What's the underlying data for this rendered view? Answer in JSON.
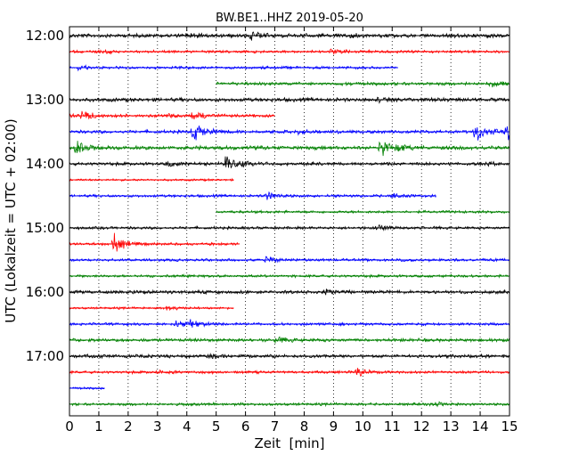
{
  "chart_data": {
    "type": "line",
    "title": "BW.BE1..HHZ 2019-05-20",
    "xlabel": "Zeit  [min]",
    "ylabel": "UTC (Lokalzeit = UTC + 02:00)",
    "xlim": [
      0,
      15
    ],
    "x_ticks": [
      "0",
      "1",
      "2",
      "3",
      "4",
      "5",
      "6",
      "7",
      "8",
      "9",
      "10",
      "11",
      "12",
      "13",
      "14",
      "15"
    ],
    "y_tick_labels": [
      "12:00",
      "13:00",
      "14:00",
      "15:00",
      "16:00",
      "17:00"
    ],
    "grid": "vertical dotted",
    "trace_colors": [
      "#000000",
      "#ff0000",
      "#0000ff",
      "#008000"
    ],
    "traces": [
      {
        "start_utc": "12:00",
        "color": "#000000",
        "active_min": [
          0,
          15
        ],
        "noise": 0.35,
        "events": [
          [
            6.2,
            0.8
          ],
          [
            4.0,
            0.3
          ],
          [
            9.5,
            0.3
          ]
        ]
      },
      {
        "start_utc": "12:15",
        "color": "#ff0000",
        "active_min": [
          0,
          15
        ],
        "noise": 0.25,
        "events": [
          [
            8.9,
            0.5
          ],
          [
            1.2,
            0.2
          ]
        ]
      },
      {
        "start_utc": "12:30",
        "color": "#0000ff",
        "active_min": [
          0,
          11.2
        ],
        "noise": 0.25,
        "events": [
          [
            0.3,
            0.4
          ]
        ]
      },
      {
        "start_utc": "12:45",
        "color": "#008000",
        "active_min": [
          5,
          15
        ],
        "noise": 0.3,
        "events": [
          [
            14.3,
            0.5
          ]
        ]
      },
      {
        "start_utc": "13:00",
        "color": "#000000",
        "active_min": [
          0,
          15
        ],
        "noise": 0.35,
        "events": [
          [
            10.5,
            0.3
          ]
        ]
      },
      {
        "start_utc": "13:15",
        "color": "#ff0000",
        "active_min": [
          0,
          7
        ],
        "noise": 0.3,
        "events": [
          [
            0.4,
            0.9
          ],
          [
            4.2,
            0.8
          ],
          [
            3.4,
            0.4
          ]
        ]
      },
      {
        "start_utc": "13:30",
        "color": "#0000ff",
        "active_min": [
          0,
          15
        ],
        "noise": 0.3,
        "events": [
          [
            4.2,
            1.8
          ],
          [
            13.8,
            1.8
          ],
          [
            14.9,
            1.5
          ],
          [
            7.8,
            0.4
          ]
        ]
      },
      {
        "start_utc": "13:45",
        "color": "#008000",
        "active_min": [
          0,
          15
        ],
        "noise": 0.35,
        "events": [
          [
            0.2,
            1.2
          ],
          [
            10.6,
            1.6
          ],
          [
            11.2,
            0.4
          ]
        ]
      },
      {
        "start_utc": "14:00",
        "color": "#000000",
        "active_min": [
          0,
          15
        ],
        "noise": 0.3,
        "events": [
          [
            5.3,
            1.8
          ],
          [
            3.3,
            0.5
          ],
          [
            14.2,
            0.3
          ]
        ]
      },
      {
        "start_utc": "14:15",
        "color": "#ff0000",
        "active_min": [
          0,
          5.6
        ],
        "noise": 0.2,
        "events": []
      },
      {
        "start_utc": "14:30",
        "color": "#0000ff",
        "active_min": [
          0,
          12.5
        ],
        "noise": 0.25,
        "events": [
          [
            6.7,
            0.8
          ],
          [
            11.0,
            0.4
          ]
        ]
      },
      {
        "start_utc": "14:45",
        "color": "#008000",
        "active_min": [
          5,
          15
        ],
        "noise": 0.25,
        "events": []
      },
      {
        "start_utc": "15:00",
        "color": "#000000",
        "active_min": [
          0,
          15
        ],
        "noise": 0.25,
        "events": [
          [
            10.5,
            0.5
          ]
        ]
      },
      {
        "start_utc": "15:15",
        "color": "#ff0000",
        "active_min": [
          0,
          5.8
        ],
        "noise": 0.25,
        "events": [
          [
            1.5,
            1.7
          ]
        ]
      },
      {
        "start_utc": "15:30",
        "color": "#0000ff",
        "active_min": [
          0,
          15
        ],
        "noise": 0.25,
        "events": [
          [
            6.7,
            0.5
          ]
        ]
      },
      {
        "start_utc": "15:45",
        "color": "#008000",
        "active_min": [
          0,
          15
        ],
        "noise": 0.25,
        "events": []
      },
      {
        "start_utc": "16:00",
        "color": "#000000",
        "active_min": [
          0,
          15
        ],
        "noise": 0.3,
        "events": [
          [
            8.7,
            0.6
          ],
          [
            2.0,
            0.3
          ],
          [
            14.8,
            0.3
          ]
        ]
      },
      {
        "start_utc": "16:15",
        "color": "#ff0000",
        "active_min": [
          0,
          5.6
        ],
        "noise": 0.2,
        "events": [
          [
            3.3,
            0.4
          ]
        ]
      },
      {
        "start_utc": "16:30",
        "color": "#0000ff",
        "active_min": [
          0,
          15
        ],
        "noise": 0.25,
        "events": [
          [
            3.6,
            0.7
          ],
          [
            4.1,
            0.6
          ]
        ]
      },
      {
        "start_utc": "16:45",
        "color": "#008000",
        "active_min": [
          0,
          15
        ],
        "noise": 0.3,
        "events": [
          [
            7.0,
            0.6
          ]
        ]
      },
      {
        "start_utc": "17:00",
        "color": "#000000",
        "active_min": [
          0,
          15
        ],
        "noise": 0.3,
        "events": [
          [
            0.6,
            0.4
          ],
          [
            4.8,
            0.3
          ]
        ]
      },
      {
        "start_utc": "17:15",
        "color": "#ff0000",
        "active_min": [
          0,
          15
        ],
        "noise": 0.25,
        "events": [
          [
            9.8,
            0.7
          ],
          [
            3.0,
            0.3
          ]
        ]
      },
      {
        "start_utc": "17:30",
        "color": "#0000ff",
        "active_min": [
          0,
          1.2
        ],
        "noise": 0.2,
        "events": []
      },
      {
        "start_utc": "17:45",
        "color": "#008000",
        "active_min": [
          0,
          15
        ],
        "noise": 0.25,
        "events": [
          [
            12.5,
            0.3
          ]
        ]
      }
    ]
  }
}
